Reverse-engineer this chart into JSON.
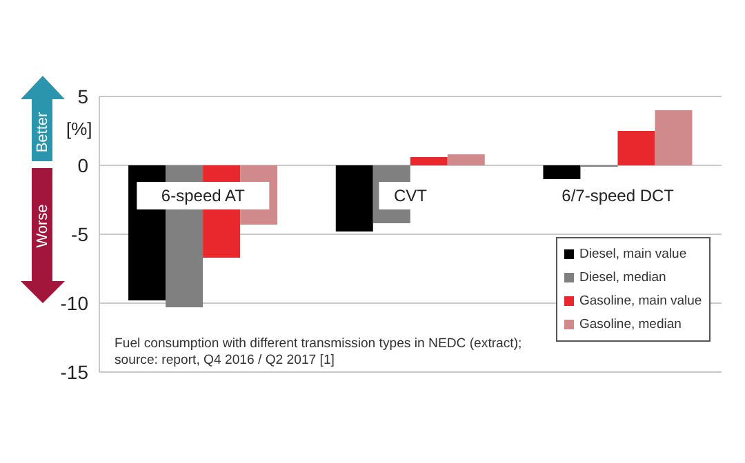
{
  "chart_data": {
    "type": "bar",
    "ylabel": "[%]",
    "categories": [
      "6-speed AT",
      "CVT",
      "6/7-speed DCT"
    ],
    "series": [
      {
        "name": "Diesel, main value",
        "color": "#000000",
        "values": [
          -9.8,
          -4.8,
          -1.0
        ]
      },
      {
        "name": "Diesel, median",
        "color": "#808080",
        "values": [
          -10.3,
          -4.2,
          -0.1
        ]
      },
      {
        "name": "Gasoline, main value",
        "color": "#e8282d",
        "values": [
          -6.7,
          0.6,
          2.5
        ]
      },
      {
        "name": "Gasoline, median",
        "color": "#d08a8c",
        "values": [
          -4.3,
          0.8,
          4.0
        ]
      }
    ],
    "ylim": [
      -15,
      5
    ],
    "yticks": [
      -15,
      -10,
      -5,
      0,
      5
    ],
    "grid": "y",
    "legend": "bottom right",
    "annotations": [
      "Better",
      "Worse",
      "Fuel consumption with different transmission types in NEDC (extract);",
      "source: report, Q4 2016 / Q2 2017 [1]"
    ]
  }
}
